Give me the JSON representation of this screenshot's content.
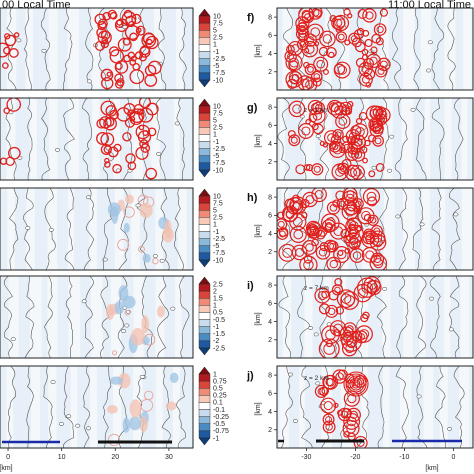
{
  "titles": {
    "left": "00 Local Time",
    "right": "11:00 Local Time"
  },
  "chart_data": [
    {
      "type": "heatmap",
      "panels": [
        {
          "label": "",
          "colorbar_ticks": [
            "10",
            "7.5",
            "5",
            "2.5",
            "1",
            "-1",
            "-2.5",
            "-5",
            "-7.5",
            "-10"
          ]
        },
        {
          "label": "",
          "colorbar_ticks": [
            "10",
            "7.5",
            "5",
            "2.5",
            "1",
            "-1",
            "-2.5",
            "-5",
            "-7.5",
            "-10"
          ]
        },
        {
          "label": "",
          "colorbar_ticks": [
            "10",
            "7.5",
            "5",
            "2.5",
            "1",
            "-1",
            "-2.5",
            "-5",
            "-7.5",
            "-10"
          ]
        },
        {
          "label": "",
          "colorbar_ticks": [
            "2.5",
            "2",
            "1.5",
            "1",
            "0.5",
            "-0.5",
            "-1",
            "-1.5",
            "-2",
            "-2.5"
          ]
        },
        {
          "label": "",
          "colorbar_ticks": [
            "1",
            "0.75",
            "0.5",
            "0.25",
            "0.1",
            "-0.1",
            "-0.25",
            "-0.5",
            "-0.75",
            "-1"
          ]
        }
      ],
      "xticks": [
        "0",
        "10",
        "20",
        "30"
      ],
      "xlabel": "[km]"
    },
    {
      "type": "heatmap",
      "panels": [
        {
          "label": "f)",
          "yticks": [
            "2",
            "4",
            "6",
            "8"
          ],
          "ylabel": "[km]",
          "annotation": ""
        },
        {
          "label": "g)",
          "yticks": [
            "2",
            "4",
            "6",
            "8"
          ],
          "ylabel": "[km]",
          "annotation": "z = 1 km"
        },
        {
          "label": "h)",
          "yticks": [
            "2",
            "4",
            "6",
            "8"
          ],
          "ylabel": "[km]",
          "annotation": ""
        },
        {
          "label": "i)",
          "yticks": [
            "2",
            "4",
            "6",
            "8"
          ],
          "ylabel": "[km]",
          "annotation": "z = 7 km"
        },
        {
          "label": "j)",
          "yticks": [
            "2",
            "4",
            "6",
            "8"
          ],
          "ylabel": "[km]",
          "annotation": "z = 2 km"
        }
      ],
      "xticks": [
        "-30",
        "-20",
        "-10",
        "0"
      ],
      "xlabel": "[km]"
    }
  ],
  "colors": {
    "frame": "#222222",
    "contour_red": "#e0201c",
    "background_blue": "#e7f0f8",
    "scale_bar_blue": "#1b2aa8",
    "scale_bar_black": "#111111",
    "colorbar_top": "#7a0c12",
    "colorbar_bottom": "#0f3d7a"
  }
}
